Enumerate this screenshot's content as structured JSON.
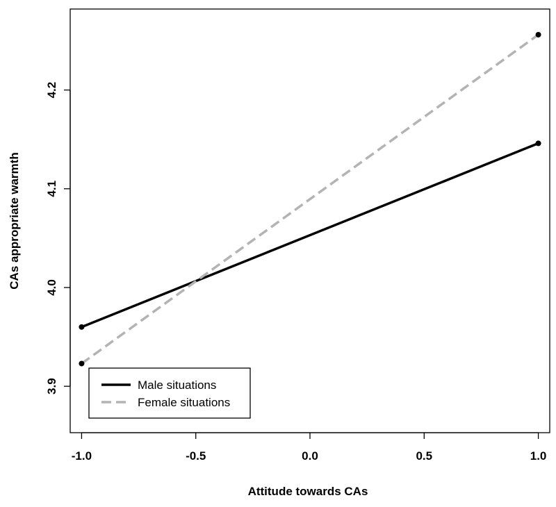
{
  "chart_data": {
    "type": "line",
    "title": "",
    "xlabel": "Attitude towards CAs",
    "ylabel": "CAs appropriate warmth",
    "xlim": [
      -1.05,
      1.05
    ],
    "ylim": [
      3.853,
      4.282
    ],
    "x_ticks": [
      -1.0,
      -0.5,
      0.0,
      0.5,
      1.0
    ],
    "x_tick_labels": [
      "-1.0",
      "-0.5",
      "0.0",
      "0.5",
      "1.0"
    ],
    "y_ticks": [
      3.9,
      4.0,
      4.1,
      4.2
    ],
    "y_tick_labels": [
      "3.9",
      "4.0",
      "4.1",
      "4.2"
    ],
    "grid": false,
    "legend_position": "bottom-left",
    "series": [
      {
        "name": "Male situations",
        "color": "#000000",
        "line_style": "solid",
        "x": [
          -1.0,
          1.0
        ],
        "y": [
          3.96,
          4.146
        ]
      },
      {
        "name": "Female situations",
        "color": "#b3b3b3",
        "line_style": "dashed",
        "x": [
          -1.0,
          1.0
        ],
        "y": [
          3.923,
          4.256
        ]
      }
    ]
  }
}
